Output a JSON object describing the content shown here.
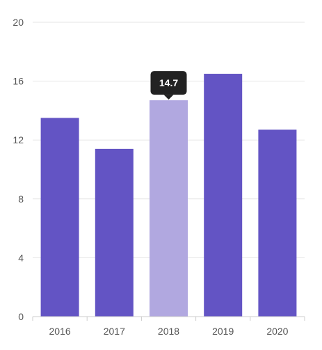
{
  "chart_data": {
    "type": "bar",
    "title": "",
    "xlabel": "",
    "ylabel": "",
    "categories": [
      "2016",
      "2017",
      "2018",
      "2019",
      "2020"
    ],
    "values": [
      13.5,
      11.4,
      14.7,
      16.5,
      12.7
    ],
    "ylim": [
      0,
      20
    ],
    "yticks": [
      "0",
      "4",
      "8",
      "12",
      "16",
      "20"
    ],
    "grid": true,
    "legend": "none",
    "highlighted_category": "2018",
    "tooltip": {
      "category": "2018",
      "text": "14.7"
    },
    "colors": {
      "bar": "#6354c4",
      "bar_highlight": "#b1a8e0",
      "grid": "#e6e6e6",
      "axis": "#cccccc",
      "tooltip_bg": "#222222",
      "tooltip_text": "#ffffff",
      "tick_text": "#555555"
    }
  }
}
